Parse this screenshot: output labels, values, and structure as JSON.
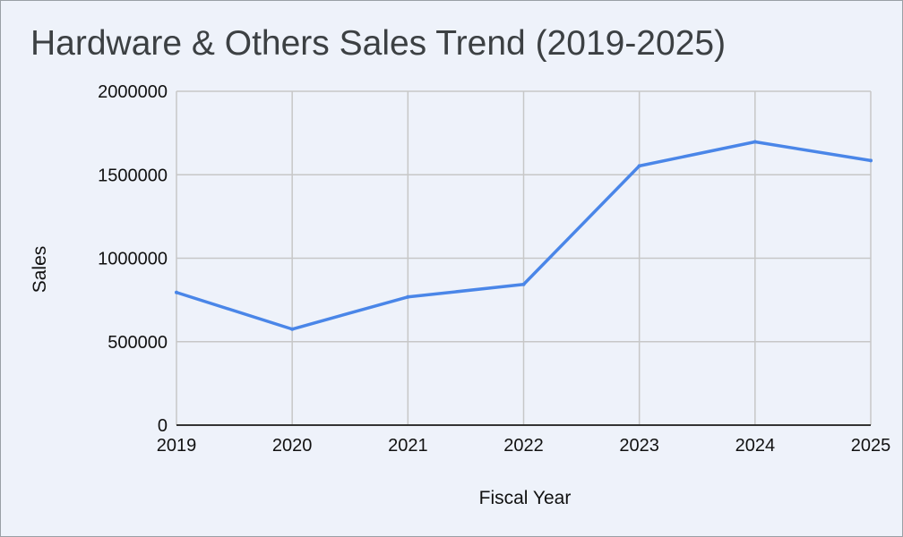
{
  "chart_data": {
    "type": "line",
    "title": "Hardware & Others Sales Trend (2019-2025)",
    "xlabel": "Fiscal Year",
    "ylabel": "Sales",
    "x": [
      "2019",
      "2020",
      "2021",
      "2022",
      "2023",
      "2024",
      "2025"
    ],
    "series": [
      {
        "values": [
          795000,
          575000,
          768000,
          843000,
          1553000,
          1697000,
          1585000
        ]
      }
    ],
    "ylim": [
      0,
      2000000
    ],
    "yticks": [
      "0",
      "500000",
      "1000000",
      "1500000",
      "2000000"
    ],
    "grid": true,
    "legend": "none",
    "colors": {
      "line": "#4a86e8",
      "grid": "#c7c7c7",
      "axis": "#333333",
      "background": "#eef2fa"
    }
  }
}
